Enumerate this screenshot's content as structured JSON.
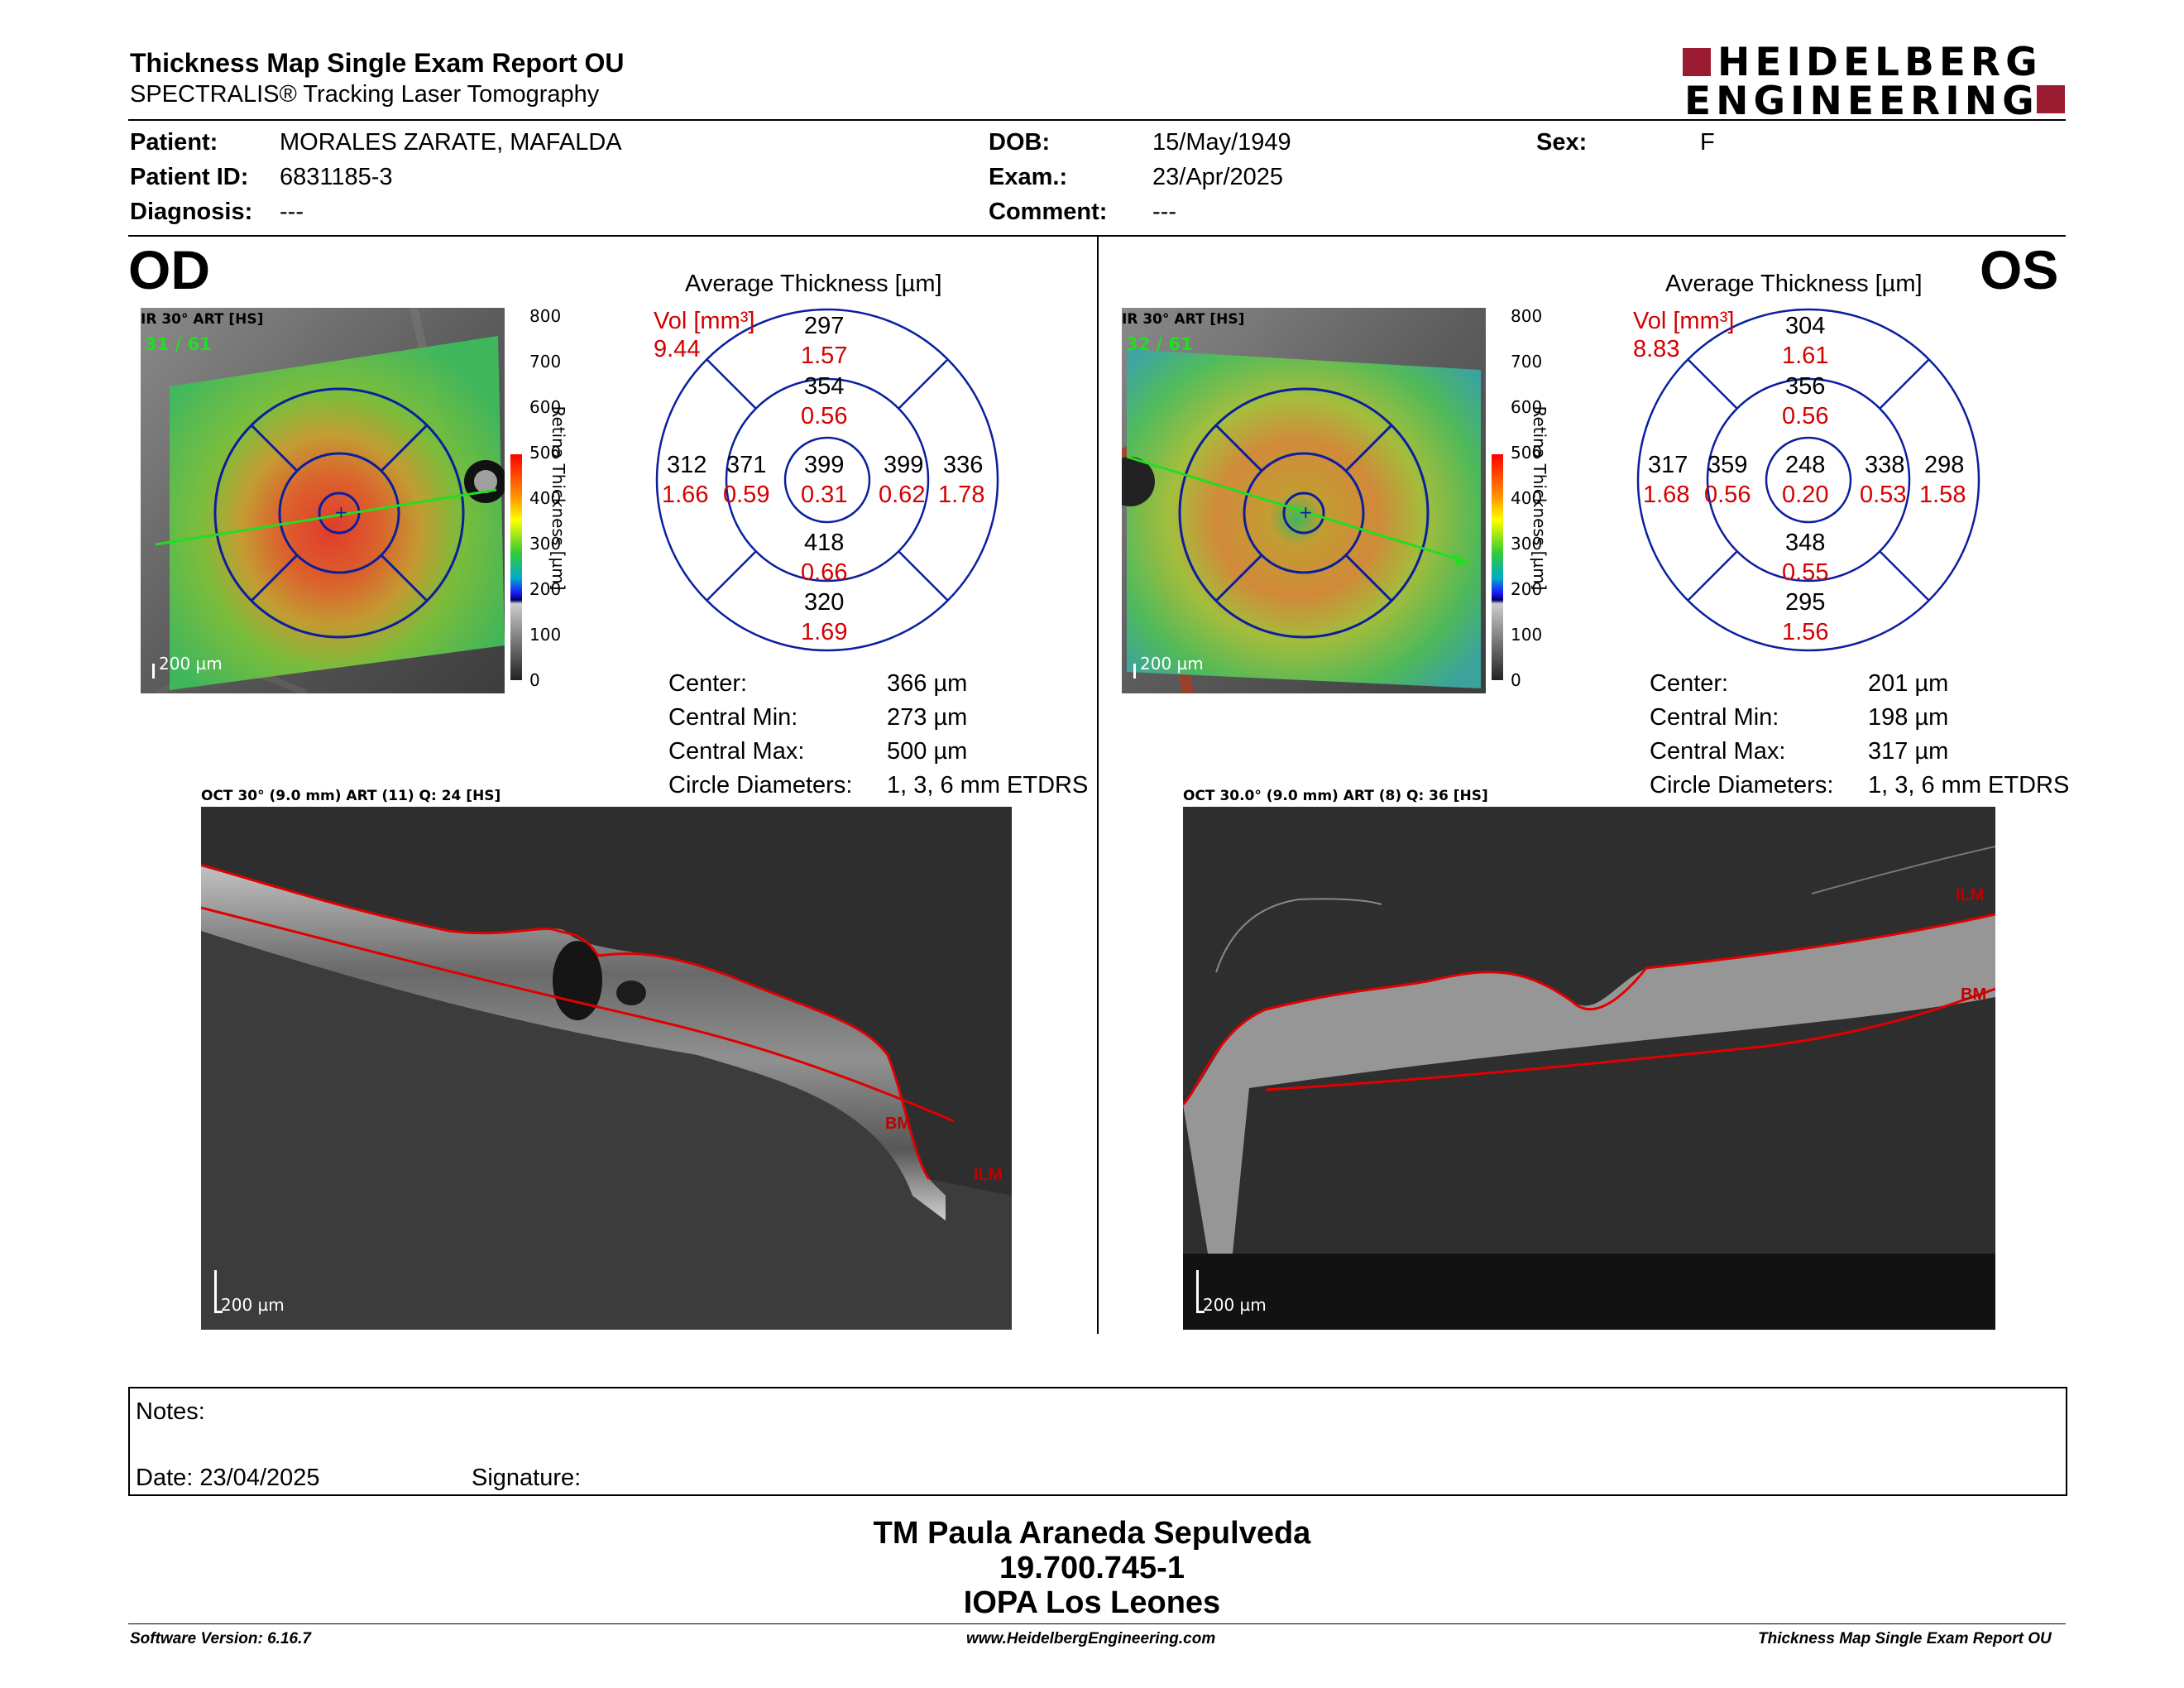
{
  "header": {
    "title": "Thickness Map Single Exam Report OU",
    "subtitle": "SPECTRALIS® Tracking Laser Tomography",
    "logo_line1": "HEIDELBERG",
    "logo_line2": "ENGINEERING"
  },
  "patient": {
    "patient_label": "Patient:",
    "patient_value": "MORALES ZARATE, MAFALDA",
    "id_label": "Patient ID:",
    "id_value": "6831185-3",
    "diagnosis_label": "Diagnosis:",
    "diagnosis_value": "---",
    "dob_label": "DOB:",
    "dob_value": "15/May/1949",
    "exam_label": "Exam.:",
    "exam_value": "23/Apr/2025",
    "comment_label": "Comment:",
    "comment_value": "---",
    "sex_label": "Sex:",
    "sex_value": "F"
  },
  "colorbar": {
    "ticks": [
      "800",
      "700",
      "600",
      "500",
      "400",
      "300",
      "200",
      "100",
      "0"
    ],
    "title": "Retina  Thickness [µm]"
  },
  "od": {
    "eye": "OD",
    "ir_label": "IR 30° ART [HS]",
    "frames": "31 / 61",
    "scale": "200 µm",
    "avg_title": "Average Thickness [µm]",
    "vol_label": "Vol [mm³]",
    "vol_total": "9.44",
    "sectors": {
      "outer_sup": "297",
      "outer_sup_vol": "1.57",
      "inner_sup": "354",
      "inner_sup_vol": "0.56",
      "outer_temp": "312",
      "outer_temp_vol": "1.66",
      "inner_temp": "371",
      "inner_temp_vol": "0.59",
      "center": "399",
      "center_vol": "0.31",
      "inner_nas": "399",
      "inner_nas_vol": "0.62",
      "outer_nas": "336",
      "outer_nas_vol": "1.78",
      "inner_inf": "418",
      "inner_inf_vol": "0.66",
      "outer_inf": "320",
      "outer_inf_vol": "1.69"
    },
    "stats": {
      "center_label": "Center:",
      "center_value": "366 µm",
      "min_label": "Central Min:",
      "min_value": "273 µm",
      "max_label": "Central Max:",
      "max_value": "500 µm",
      "diam_label": "Circle Diameters:",
      "diam_value": "1, 3, 6 mm ETDRS"
    },
    "oct_label": "OCT 30° (9.0 mm) ART (11) Q: 24 [HS]",
    "oct_scale": "200 µm",
    "bm": "BM",
    "ilm": "ILM"
  },
  "os": {
    "eye": "OS",
    "ir_label": "IR 30° ART [HS]",
    "frames": "32 / 61",
    "scale": "200 µm",
    "avg_title": "Average Thickness [µm]",
    "vol_label": "Vol [mm³]",
    "vol_total": "8.83",
    "sectors": {
      "outer_sup": "304",
      "outer_sup_vol": "1.61",
      "inner_sup": "356",
      "inner_sup_vol": "0.56",
      "outer_temp": "317",
      "outer_temp_vol": "1.68",
      "inner_temp": "359",
      "inner_temp_vol": "0.56",
      "center": "248",
      "center_vol": "0.20",
      "inner_nas": "338",
      "inner_nas_vol": "0.53",
      "outer_nas": "298",
      "outer_nas_vol": "1.58",
      "inner_inf": "348",
      "inner_inf_vol": "0.55",
      "outer_inf": "295",
      "outer_inf_vol": "1.56"
    },
    "stats": {
      "center_label": "Center:",
      "center_value": "201 µm",
      "min_label": "Central Min:",
      "min_value": "198 µm",
      "max_label": "Central Max:",
      "max_value": "317 µm",
      "diam_label": "Circle Diameters:",
      "diam_value": "1, 3, 6 mm ETDRS"
    },
    "oct_label": "OCT 30.0° (9.0 mm) ART (8) Q: 36 [HS]",
    "oct_scale": "200 µm",
    "ilm": "ILM",
    "bm": "BM"
  },
  "notes": {
    "notes_label": "Notes:",
    "date_label": "Date: 23/04/2025",
    "signature_label": "Signature:"
  },
  "signer": {
    "name": "TM Paula Araneda Sepulveda",
    "id": "19.700.745-1",
    "org": "IOPA Los Leones"
  },
  "footer": {
    "software": "Software Version: 6.16.7",
    "url": "www.HeidelbergEngineering.com",
    "report": "Thickness Map Single Exam Report OU"
  },
  "colors": {
    "accent": "#9b1b30",
    "grid_blue": "#0b1f9e",
    "vol_red": "#d40000",
    "layer_red": "#e00000",
    "frame_green": "#22dd22"
  }
}
